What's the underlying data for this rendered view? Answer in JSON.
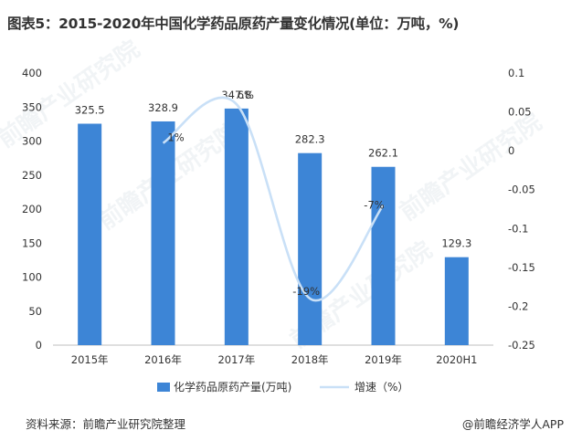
{
  "title": "图表5：2015-2020年中国化学药品原药产量变化情况(单位：万吨，%)",
  "source": "资料来源：前瞻产业研究院整理",
  "credit": "@前瞻经济学人APP",
  "watermark": "前瞻产业研究院",
  "colors": {
    "bar": "#3d85d6",
    "line": "#c9e0f7",
    "text": "#333333",
    "axis": "#999999"
  },
  "chart_data": {
    "type": "bar",
    "categories": [
      "2015年",
      "2016年",
      "2017年",
      "2018年",
      "2019年",
      "2020H1"
    ],
    "series": [
      {
        "name": "化学药品原药产量(万吨)",
        "type": "bar",
        "values": [
          325.5,
          328.9,
          347.8,
          282.3,
          262.1,
          129.3
        ],
        "labels": [
          "325.5",
          "328.9",
          "347.8",
          "282.3",
          "262.1",
          "129.3"
        ]
      },
      {
        "name": "增速（%）",
        "type": "line",
        "axis": "right",
        "values": [
          null,
          0.01,
          0.06,
          -0.19,
          -0.07,
          null
        ],
        "labels": [
          "",
          "1%",
          "6%",
          "-19%",
          "-7%",
          ""
        ]
      }
    ],
    "y_left": {
      "min": 0,
      "max": 400,
      "ticks": [
        "0",
        "50",
        "100",
        "150",
        "200",
        "250",
        "300",
        "350",
        "400"
      ]
    },
    "y_right": {
      "min": -0.25,
      "max": 0.1,
      "ticks": [
        "0.1",
        "0.05",
        "0",
        "-0.05",
        "-0.1",
        "-0.15",
        "-0.2",
        "-0.25"
      ]
    },
    "legend": "bottom"
  }
}
